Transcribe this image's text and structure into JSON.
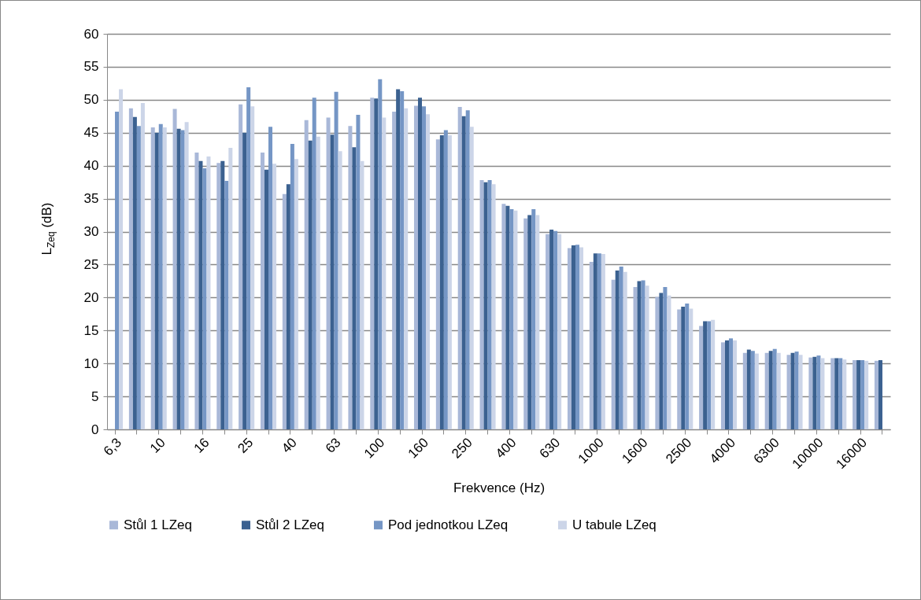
{
  "chart_data": {
    "type": "bar",
    "xlabel": "Frekvence (Hz)",
    "ylabel": "L$_{Zeq}$ (dB)",
    "categories": [
      "6,3",
      null,
      "10",
      null,
      "16",
      null,
      "25",
      null,
      "40",
      null,
      "63",
      null,
      "100",
      null,
      "160",
      null,
      "250",
      null,
      "400",
      null,
      "630",
      null,
      "1000",
      null,
      "1600",
      null,
      "2500",
      null,
      "4000",
      null,
      "6300",
      null,
      "10000",
      null,
      "16000",
      null
    ],
    "ylim": [
      0,
      60
    ],
    "yticks": [
      0,
      5,
      10,
      15,
      20,
      25,
      30,
      35,
      40,
      45,
      50,
      55,
      60
    ],
    "grid": "y",
    "legend": "bottom",
    "series": [
      {
        "name": "Stůl 1 LZeq",
        "color": "#a9b8d8",
        "values": [
          null,
          48.7,
          45.8,
          48.6,
          42.0,
          40.4,
          49.3,
          42.0,
          35.7,
          46.9,
          47.3,
          46.0,
          50.3,
          48.2,
          49.1,
          44.0,
          48.9,
          37.8,
          34.2,
          32.0,
          29.6,
          27.5,
          25.4,
          22.7,
          21.6,
          20.1,
          18.2,
          15.7,
          13.2,
          11.6,
          11.6,
          11.3,
          10.9,
          10.8,
          10.5,
          10.4
        ]
      },
      {
        "name": "Stůl 2 LZeq",
        "color": "#3b6190",
        "values": [
          null,
          47.4,
          45.0,
          45.6,
          40.7,
          40.7,
          45.0,
          39.4,
          37.2,
          43.8,
          44.7,
          42.8,
          50.2,
          51.6,
          50.3,
          44.6,
          47.5,
          37.5,
          33.9,
          32.5,
          30.3,
          27.9,
          26.7,
          24.1,
          22.5,
          20.7,
          18.6,
          16.4,
          13.5,
          12.1,
          11.9,
          11.6,
          11.0,
          10.8,
          10.5,
          10.5
        ]
      },
      {
        "name": "Pod jednotkou LZeq",
        "color": "#7596c5",
        "values": [
          48.2,
          46.0,
          46.3,
          45.4,
          39.6,
          37.7,
          51.9,
          45.9,
          43.3,
          50.3,
          51.2,
          47.7,
          53.1,
          51.3,
          49.0,
          45.4,
          48.4,
          37.8,
          33.4,
          33.4,
          30.1,
          28.0,
          26.7,
          24.7,
          22.6,
          21.6,
          19.1,
          16.4,
          13.8,
          11.9,
          12.2,
          11.8,
          11.2,
          10.8,
          10.5,
          null
        ]
      },
      {
        "name": "U tabule LZeq",
        "color": "#ccd5e8",
        "values": [
          51.6,
          49.5,
          45.8,
          46.6,
          41.4,
          42.7,
          49.0,
          40.3,
          41.0,
          44.4,
          42.2,
          40.7,
          47.3,
          48.7,
          47.8,
          44.6,
          45.9,
          37.2,
          33.2,
          32.5,
          29.6,
          27.6,
          26.6,
          23.9,
          21.8,
          20.3,
          18.3,
          16.6,
          13.5,
          11.5,
          11.6,
          11.3,
          10.8,
          10.6,
          10.4,
          null
        ]
      }
    ]
  }
}
